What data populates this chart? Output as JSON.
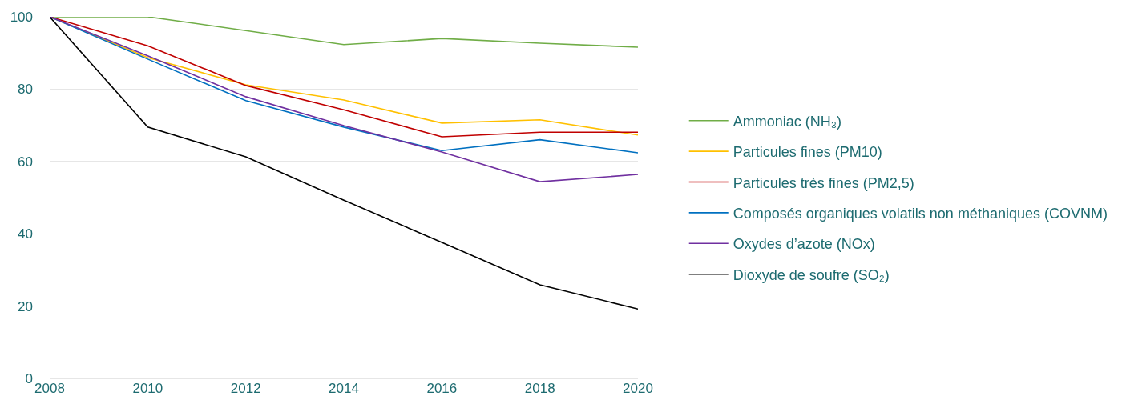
{
  "chart_data": {
    "type": "line",
    "x": [
      2008,
      2010,
      2012,
      2014,
      2016,
      2018,
      2020
    ],
    "series": [
      {
        "name": "Ammoniac (NH₃)",
        "color": "#70ad47",
        "values": [
          100,
          100,
          96.2,
          92.3,
          94,
          92.7,
          91.6
        ]
      },
      {
        "name": "Particules fines (PM10)",
        "color": "#ffc000",
        "values": [
          100,
          88.7,
          81.2,
          77,
          70.6,
          71.5,
          67.3
        ]
      },
      {
        "name": "Particules très fines (PM2,5)",
        "color": "#c00000",
        "values": [
          100,
          92,
          81,
          74.3,
          66.8,
          68.1,
          68.1
        ]
      },
      {
        "name": "Composés organiques volatils non méthaniques (COVNM)",
        "color": "#0070c0",
        "values": [
          100,
          88.3,
          76.8,
          69.5,
          63,
          66,
          62.4
        ]
      },
      {
        "name": "Oxydes d’azote (NOx)",
        "color": "#7030a0",
        "values": [
          100,
          89.2,
          77.9,
          69.9,
          62.6,
          54.4,
          56.4
        ]
      },
      {
        "name": "Dioxyde de soufre (SO₂)",
        "color": "#000000",
        "values": [
          100,
          69.5,
          61.3,
          49.3,
          37.6,
          25.9,
          19.2
        ]
      }
    ],
    "xlim": [
      2008,
      2020
    ],
    "xticks": [
      2008,
      2010,
      2012,
      2014,
      2016,
      2018,
      2020
    ],
    "ylim": [
      0,
      100
    ],
    "yticks": [
      0,
      20,
      40,
      60,
      80,
      100
    ],
    "grid": "y",
    "legend": "right",
    "marker": "none",
    "line_style": "solid"
  }
}
